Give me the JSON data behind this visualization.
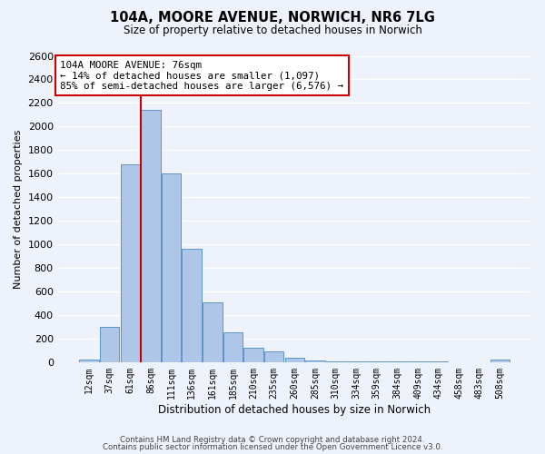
{
  "title": "104A, MOORE AVENUE, NORWICH, NR6 7LG",
  "subtitle": "Size of property relative to detached houses in Norwich",
  "xlabel": "Distribution of detached houses by size in Norwich",
  "ylabel": "Number of detached properties",
  "bin_labels": [
    "12sqm",
    "37sqm",
    "61sqm",
    "86sqm",
    "111sqm",
    "136sqm",
    "161sqm",
    "185sqm",
    "210sqm",
    "235sqm",
    "260sqm",
    "285sqm",
    "310sqm",
    "334sqm",
    "359sqm",
    "384sqm",
    "409sqm",
    "434sqm",
    "458sqm",
    "483sqm",
    "508sqm"
  ],
  "bar_values": [
    20,
    300,
    1680,
    2140,
    1600,
    960,
    510,
    255,
    120,
    95,
    35,
    15,
    5,
    5,
    5,
    5,
    5,
    5,
    0,
    0,
    20
  ],
  "bar_color": "#aec6e8",
  "bar_edge_color": "#5a96c8",
  "bg_color": "#eef2fb",
  "grid_color": "#ffffff",
  "marker_line_color": "#cc0000",
  "annotation_text": "104A MOORE AVENUE: 76sqm\n← 14% of detached houses are smaller (1,097)\n85% of semi-detached houses are larger (6,576) →",
  "annotation_box_color": "#ffffff",
  "annotation_box_edge": "#cc0000",
  "ylim": [
    0,
    2600
  ],
  "yticks": [
    0,
    200,
    400,
    600,
    800,
    1000,
    1200,
    1400,
    1600,
    1800,
    2000,
    2200,
    2400,
    2600
  ],
  "footer_line1": "Contains HM Land Registry data © Crown copyright and database right 2024.",
  "footer_line2": "Contains public sector information licensed under the Open Government Licence v3.0."
}
